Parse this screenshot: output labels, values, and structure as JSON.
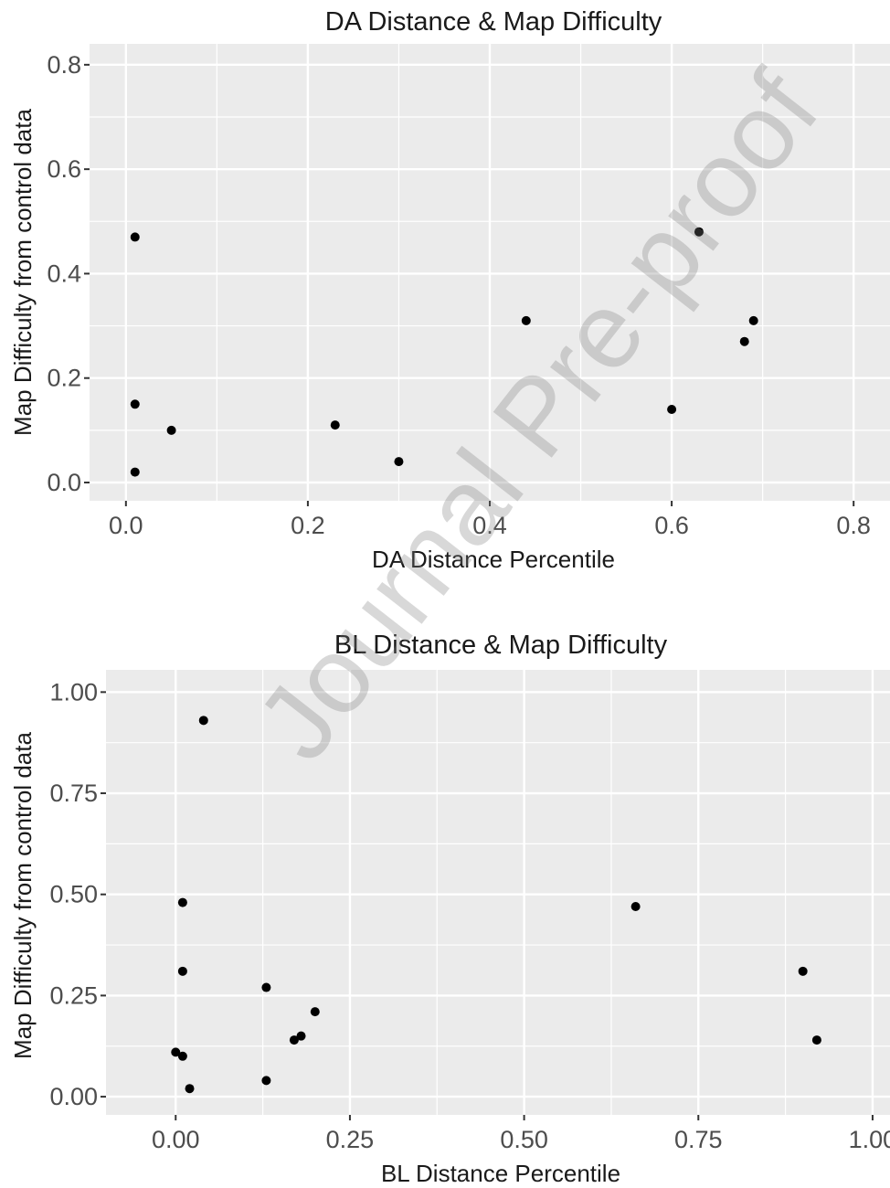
{
  "watermark": "Journal Pre-proof",
  "chart_data": [
    {
      "type": "scatter",
      "title": "DA Distance & Map Difficulty",
      "xlabel": "DA Distance Percentile",
      "ylabel": "Map Difficulty from control data",
      "xlim": [
        -0.04,
        0.84
      ],
      "ylim": [
        -0.035,
        0.84
      ],
      "x_ticks": [
        0.0,
        0.2,
        0.4,
        0.6,
        0.8
      ],
      "x_tick_labels": [
        "0.0",
        "0.2",
        "0.4",
        "0.6",
        "0.8"
      ],
      "y_ticks": [
        0.0,
        0.2,
        0.4,
        0.6,
        0.8
      ],
      "y_tick_labels": [
        "0.0",
        "0.2",
        "0.4",
        "0.6",
        "0.8"
      ],
      "grid": true,
      "points": [
        {
          "x": 0.01,
          "y": 0.47
        },
        {
          "x": 0.01,
          "y": 0.15
        },
        {
          "x": 0.01,
          "y": 0.02
        },
        {
          "x": 0.05,
          "y": 0.1
        },
        {
          "x": 0.23,
          "y": 0.11
        },
        {
          "x": 0.3,
          "y": 0.04
        },
        {
          "x": 0.44,
          "y": 0.31
        },
        {
          "x": 0.6,
          "y": 0.14
        },
        {
          "x": 0.63,
          "y": 0.48
        },
        {
          "x": 0.68,
          "y": 0.27
        },
        {
          "x": 0.69,
          "y": 0.31
        }
      ]
    },
    {
      "type": "scatter",
      "title": "BL Distance & Map Difficulty",
      "xlabel": "BL Distance Percentile",
      "ylabel": "Map Difficulty from control data",
      "xlim": [
        -0.1,
        1.025
      ],
      "ylim": [
        -0.045,
        1.055
      ],
      "x_ticks": [
        0.0,
        0.25,
        0.5,
        0.75,
        1.0
      ],
      "x_tick_labels": [
        "0.00",
        "0.25",
        "0.50",
        "0.75",
        "1.00"
      ],
      "y_ticks": [
        0.0,
        0.25,
        0.5,
        0.75,
        1.0
      ],
      "y_tick_labels": [
        "0.00",
        "0.25",
        "0.50",
        "0.75",
        "1.00"
      ],
      "grid": true,
      "points": [
        {
          "x": 0.04,
          "y": 0.93
        },
        {
          "x": 0.01,
          "y": 0.48
        },
        {
          "x": 0.01,
          "y": 0.31
        },
        {
          "x": 0.0,
          "y": 0.11
        },
        {
          "x": 0.01,
          "y": 0.1
        },
        {
          "x": 0.02,
          "y": 0.02
        },
        {
          "x": 0.13,
          "y": 0.27
        },
        {
          "x": 0.13,
          "y": 0.04
        },
        {
          "x": 0.17,
          "y": 0.14
        },
        {
          "x": 0.18,
          "y": 0.15
        },
        {
          "x": 0.2,
          "y": 0.21
        },
        {
          "x": 0.66,
          "y": 0.47
        },
        {
          "x": 0.9,
          "y": 0.31
        },
        {
          "x": 0.92,
          "y": 0.14
        }
      ]
    }
  ]
}
